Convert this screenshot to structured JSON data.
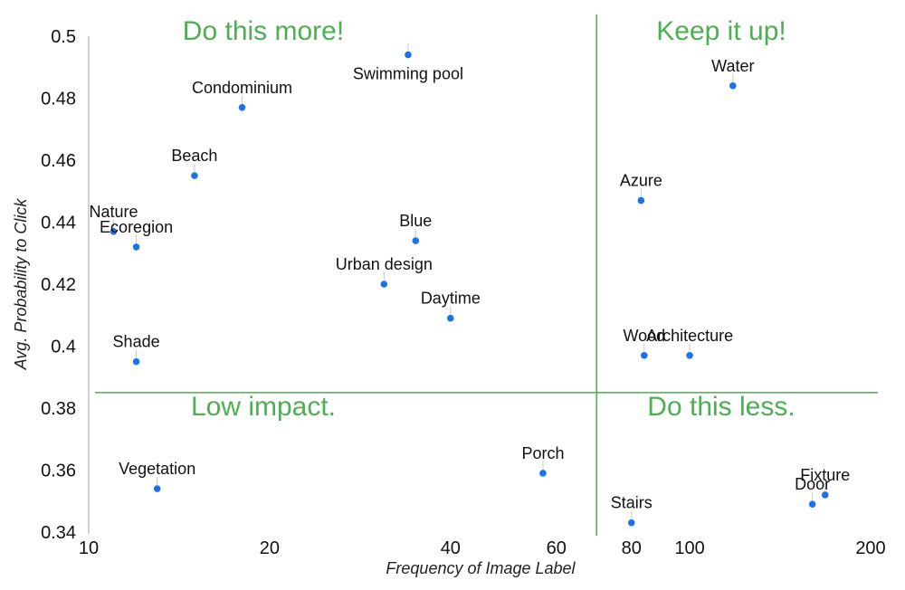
{
  "chart_data": {
    "type": "scatter",
    "xlabel": "Frequency of Image Label",
    "ylabel": "Avg. Probability to Click",
    "x_scale": "log",
    "xlim": [
      10,
      200
    ],
    "ylim": [
      0.34,
      0.5
    ],
    "xticks": [
      10,
      20,
      40,
      60,
      80,
      100,
      200
    ],
    "yticks": [
      0.34,
      0.36,
      0.38,
      0.4,
      0.42,
      0.44,
      0.46,
      0.48,
      0.5
    ],
    "ytick_labels": [
      "0.34",
      "0.36",
      "0.38",
      "0.4",
      "0.42",
      "0.44",
      "0.46",
      "0.48",
      "0.5"
    ],
    "divider_x": 70,
    "divider_y": 0.385,
    "point_color": "#1a73e8",
    "quadrant_color": "#4caf50",
    "quadrants": [
      {
        "name": "quadrant-top-left",
        "text": "Do this more!"
      },
      {
        "name": "quadrant-top-right",
        "text": "Keep it up!"
      },
      {
        "name": "quadrant-bottom-left",
        "text": "Low impact."
      },
      {
        "name": "quadrant-bottom-right",
        "text": "Do this less."
      }
    ],
    "points": [
      {
        "label": "Swimming pool",
        "x": 34,
        "y": 0.494
      },
      {
        "label": "Condominium",
        "x": 18,
        "y": 0.477
      },
      {
        "label": "Beach",
        "x": 15,
        "y": 0.455
      },
      {
        "label": "Nature",
        "x": 11,
        "y": 0.437
      },
      {
        "label": "Ecoregion",
        "x": 12,
        "y": 0.432
      },
      {
        "label": "Blue",
        "x": 35,
        "y": 0.434
      },
      {
        "label": "Urban design",
        "x": 31,
        "y": 0.42
      },
      {
        "label": "Daytime",
        "x": 40,
        "y": 0.409
      },
      {
        "label": "Shade",
        "x": 12,
        "y": 0.395
      },
      {
        "label": "Water",
        "x": 118,
        "y": 0.484
      },
      {
        "label": "Azure",
        "x": 83,
        "y": 0.447
      },
      {
        "label": "Wood",
        "x": 84,
        "y": 0.397
      },
      {
        "label": "Architecture",
        "x": 100,
        "y": 0.397
      },
      {
        "label": "Vegetation",
        "x": 13,
        "y": 0.354
      },
      {
        "label": "Porch",
        "x": 57,
        "y": 0.359
      },
      {
        "label": "Stairs",
        "x": 80,
        "y": 0.343
      },
      {
        "label": "Door",
        "x": 160,
        "y": 0.349
      },
      {
        "label": "Fixture",
        "x": 168,
        "y": 0.352
      }
    ]
  }
}
